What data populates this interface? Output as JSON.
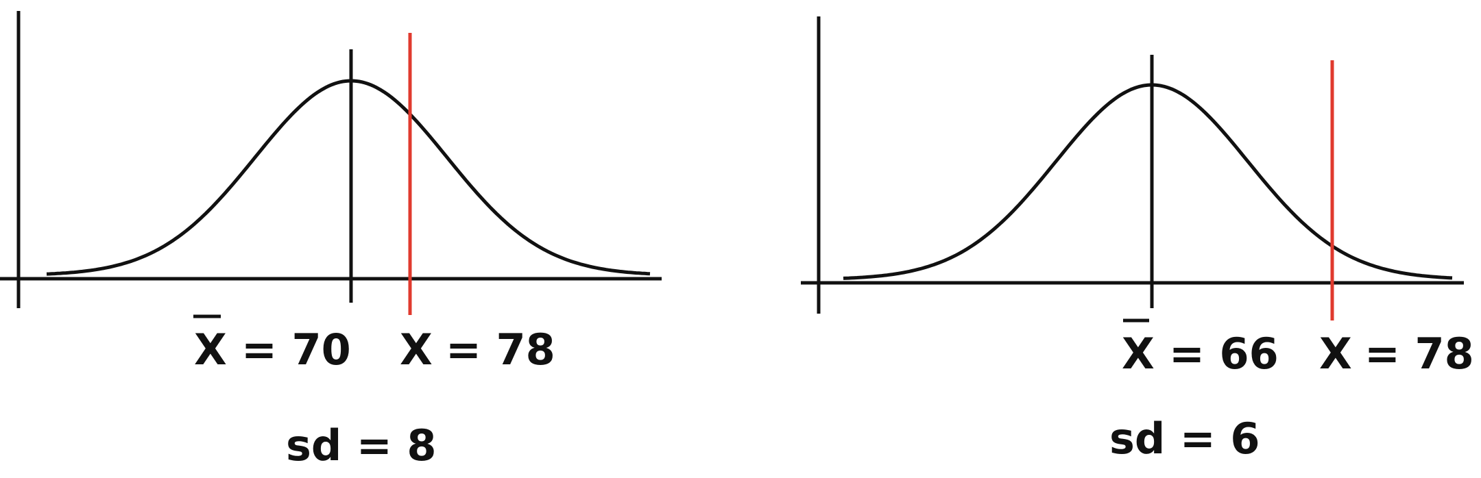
{
  "chart_data": [
    {
      "type": "diagram",
      "mean": 70,
      "x": 78,
      "sd": 8,
      "mean_symbol": "X",
      "x_symbol": "X",
      "mean_value_text": "= 70",
      "x_value_text": "= 78",
      "sd_text": "sd = 8"
    },
    {
      "type": "diagram",
      "mean": 66,
      "x": 78,
      "sd": 6,
      "mean_symbol": "X",
      "x_symbol": "X",
      "mean_value_text": "= 66",
      "x_value_text": "= 78",
      "sd_text": "sd = 6"
    }
  ],
  "colors": {
    "curve": "#111111",
    "axis": "#111111",
    "mean_line": "#111111",
    "x_line": "#e03a2e"
  }
}
